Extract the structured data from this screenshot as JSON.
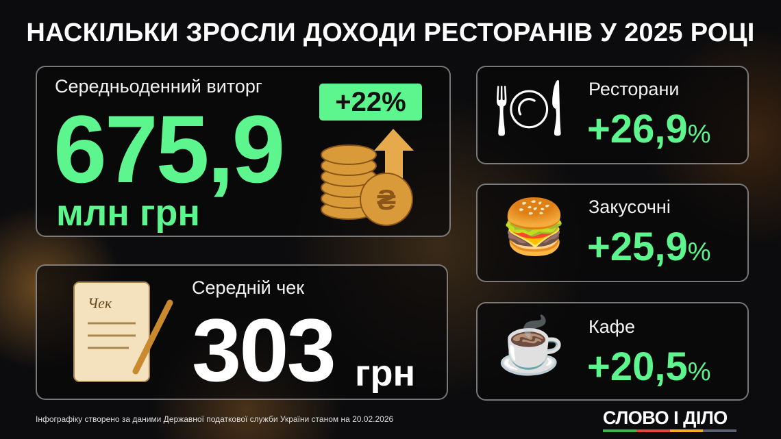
{
  "title": "НАСКІЛЬКИ ЗРОСЛИ ДОХОДИ РЕСТОРАНІВ У 2025 РОЦІ",
  "revenue": {
    "label": "Середньоденний виторг",
    "value": "675,9",
    "unit": "млн грн",
    "badge": "+22%",
    "icon": "coins-arrow-up-icon"
  },
  "check": {
    "label": "Середній чек",
    "value": "303",
    "unit": "грн",
    "icon": "receipt-scroll-icon",
    "receipt_word": "Чек"
  },
  "categories": [
    {
      "label": "Ресторани",
      "value": "+26,9",
      "percent": "%",
      "icon": "cloche-icon"
    },
    {
      "label": "Закусочні",
      "value": "+25,9",
      "percent": "%",
      "icon": "burger-bag-icon"
    },
    {
      "label": "Кафе",
      "value": "+20,5",
      "percent": "%",
      "icon": "coffee-cup-icon"
    }
  ],
  "footer": "Інфографіку створено за даними Державної податкової служби України станом на 20.02.2026",
  "logo": "СЛОВО І ДІЛО",
  "colors": {
    "accent": "#5cf58e",
    "logo_stripes": [
      "#3bb54a",
      "#e8433f",
      "#f5b21b",
      "#5a6170"
    ]
  }
}
